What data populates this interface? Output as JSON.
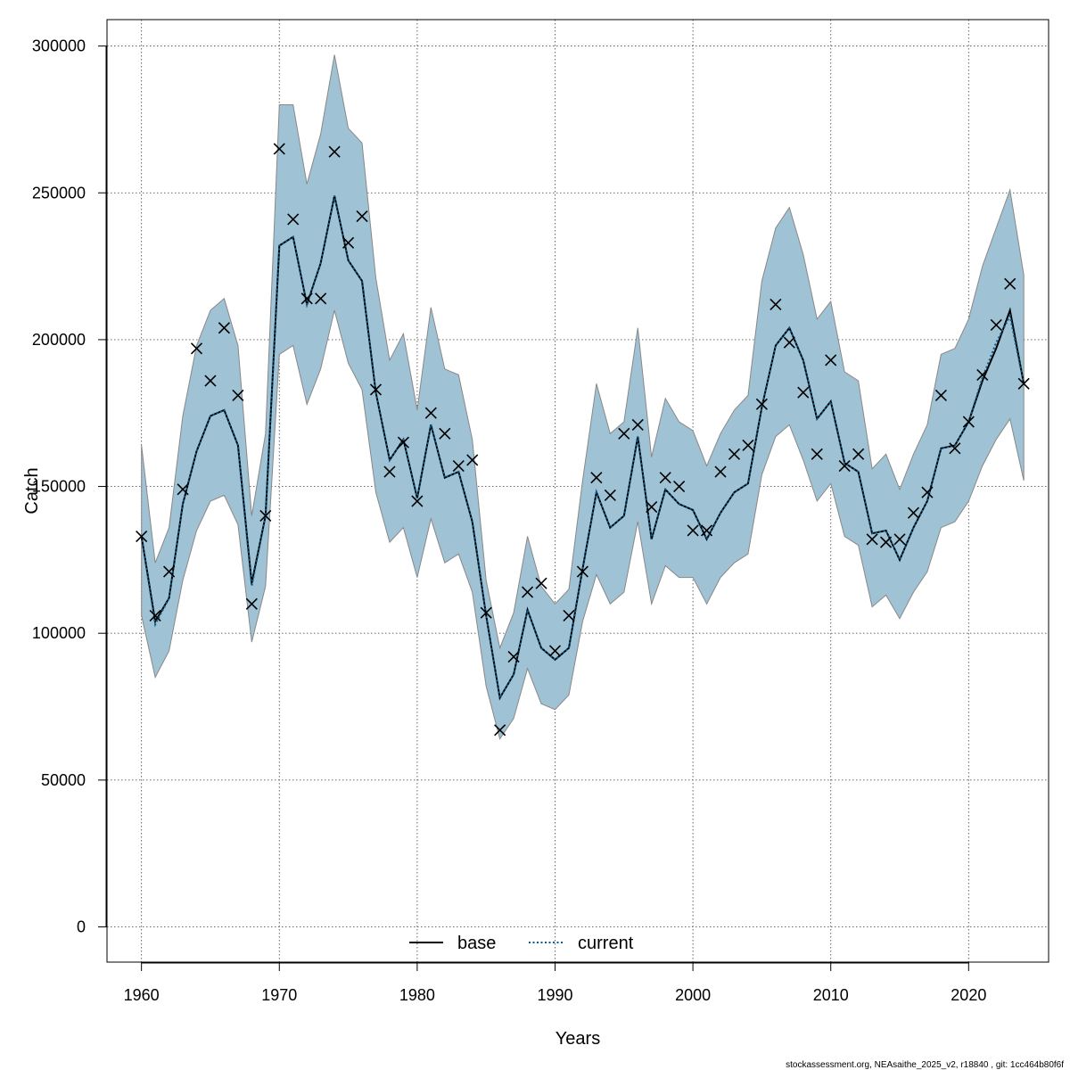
{
  "chart_data": {
    "type": "line",
    "xlabel": "Years",
    "ylabel": "Catch",
    "xlim": [
      1957.5,
      2025.8
    ],
    "ylim": [
      -12000,
      309000
    ],
    "x_ticks": [
      1960,
      1970,
      1980,
      1990,
      2000,
      2010,
      2020
    ],
    "y_ticks": [
      0,
      50000,
      100000,
      150000,
      200000,
      250000,
      300000
    ],
    "x_tick_labels": [
      "1960",
      "1970",
      "1980",
      "1990",
      "2000",
      "2010",
      "2020"
    ],
    "y_tick_labels": [
      "0",
      "50000",
      "100000",
      "150000",
      "200000",
      "250000",
      "300000"
    ],
    "grid": true,
    "legend_position": "bottom-center",
    "legend": [
      {
        "name": "base",
        "style": "solid",
        "color": "#000000"
      },
      {
        "name": "current",
        "style": "dotted",
        "color": "#0a5a8a"
      }
    ],
    "band_color": "#9fc2d5",
    "band_edge_color": "#888888",
    "x": [
      1960,
      1961,
      1962,
      1963,
      1964,
      1965,
      1966,
      1967,
      1968,
      1969,
      1970,
      1971,
      1972,
      1973,
      1974,
      1975,
      1976,
      1977,
      1978,
      1979,
      1980,
      1981,
      1982,
      1983,
      1984,
      1985,
      1986,
      1987,
      1988,
      1989,
      1990,
      1991,
      1992,
      1993,
      1994,
      1995,
      1996,
      1997,
      1998,
      1999,
      2000,
      2001,
      2002,
      2003,
      2004,
      2005,
      2006,
      2007,
      2008,
      2009,
      2010,
      2011,
      2012,
      2013,
      2014,
      2015,
      2016,
      2017,
      2018,
      2019,
      2020,
      2021,
      2022,
      2023,
      2024
    ],
    "series": [
      {
        "name": "base",
        "values": [
          133000,
          104000,
          112000,
          144000,
          162000,
          174000,
          176000,
          164000,
          117000,
          140000,
          232000,
          235000,
          212000,
          226000,
          249000,
          227000,
          220000,
          182000,
          159000,
          166000,
          146000,
          171000,
          153000,
          155000,
          138000,
          106000,
          78000,
          86000,
          108000,
          95000,
          91000,
          95000,
          122000,
          148000,
          136000,
          140000,
          167000,
          132000,
          149000,
          144000,
          142000,
          132000,
          141000,
          148000,
          151000,
          177000,
          198000,
          204000,
          193000,
          173000,
          179000,
          158000,
          155000,
          134000,
          135000,
          125000,
          136000,
          145000,
          163000,
          164000,
          172000,
          186000,
          197000,
          210000,
          185000
        ]
      },
      {
        "name": "current",
        "values": [
          133000,
          103000,
          112000,
          144000,
          162000,
          174000,
          176000,
          164000,
          116000,
          140000,
          232000,
          235000,
          212000,
          226000,
          249000,
          227000,
          220000,
          182000,
          159000,
          166000,
          146000,
          171000,
          153000,
          155000,
          138000,
          106000,
          78000,
          86000,
          108000,
          95000,
          91000,
          95000,
          122000,
          148000,
          136000,
          140000,
          167000,
          132000,
          149000,
          144000,
          142000,
          132000,
          141000,
          148000,
          151000,
          177000,
          198000,
          204000,
          193000,
          173000,
          179000,
          158000,
          155000,
          134000,
          135000,
          125000,
          136000,
          145000,
          163000,
          164000,
          172000,
          187000,
          199000,
          208000,
          185000
        ]
      }
    ],
    "band_upper": [
      164000,
      124000,
      136000,
      174000,
      198000,
      210000,
      214000,
      198000,
      140000,
      168000,
      280000,
      280000,
      253000,
      270000,
      297000,
      272000,
      267000,
      221000,
      193000,
      202000,
      176000,
      211000,
      190000,
      188000,
      166000,
      118000,
      95000,
      107000,
      133000,
      116000,
      110000,
      115000,
      152000,
      185000,
      168000,
      172000,
      204000,
      160000,
      180000,
      172000,
      169000,
      157000,
      168000,
      176000,
      181000,
      220000,
      238000,
      245000,
      229000,
      207000,
      213000,
      189000,
      186000,
      156000,
      161000,
      149000,
      161000,
      171000,
      195000,
      197000,
      207000,
      225000,
      238000,
      251000,
      222000
    ],
    "band_lower": [
      106000,
      85000,
      94000,
      118000,
      135000,
      145000,
      147000,
      137000,
      97000,
      116000,
      195000,
      198000,
      178000,
      190000,
      210000,
      192000,
      183000,
      148000,
      131000,
      136000,
      119000,
      139000,
      124000,
      127000,
      114000,
      82000,
      64000,
      71000,
      88000,
      76000,
      74000,
      79000,
      104000,
      120000,
      110000,
      114000,
      138000,
      110000,
      123000,
      119000,
      119000,
      110000,
      119000,
      124000,
      127000,
      154000,
      167000,
      171000,
      159000,
      145000,
      151000,
      133000,
      130000,
      109000,
      113000,
      105000,
      114000,
      121000,
      136000,
      138000,
      145000,
      157000,
      166000,
      173000,
      152000
    ],
    "observed": [
      133000,
      106000,
      121000,
      149000,
      197000,
      186000,
      204000,
      181000,
      110000,
      140000,
      265000,
      241000,
      214000,
      214000,
      264000,
      233000,
      242000,
      183000,
      155000,
      165000,
      145000,
      175000,
      168000,
      157000,
      159000,
      107000,
      67000,
      92000,
      114000,
      117000,
      94000,
      106000,
      121000,
      153000,
      147000,
      168000,
      171000,
      143000,
      153000,
      150000,
      135000,
      135000,
      155000,
      161000,
      164000,
      178000,
      212000,
      199000,
      182000,
      161000,
      193000,
      157000,
      161000,
      132000,
      131000,
      132000,
      141000,
      148000,
      181000,
      163000,
      172000,
      188000,
      205000,
      219000,
      185000
    ]
  },
  "footer": "stockassessment.org, NEAsaithe_2025_v2, r18840 , git: 1cc464b80f6f"
}
